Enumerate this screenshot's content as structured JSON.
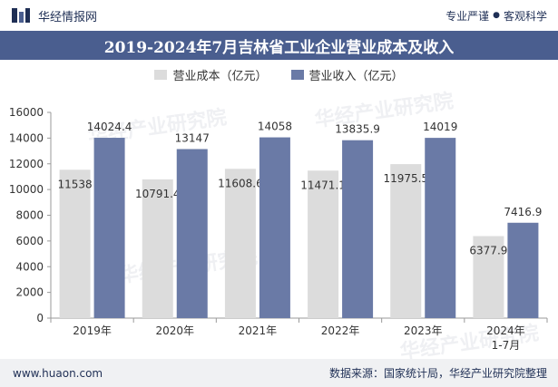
{
  "header": {
    "brand": "华经情报网",
    "slogan_left": "专业严谨",
    "slogan_right": "客观科学"
  },
  "watermark": "华经产业研究院",
  "colors": {
    "cost": "#dcdcdc",
    "revenue": "#6a7aa6",
    "title_bg": "#4a5e8f"
  },
  "chart_data": {
    "type": "bar",
    "title": "2019-2024年7月吉林省工业企业营业成本及收入",
    "categories": [
      "2019年",
      "2020年",
      "2021年",
      "2022年",
      "2023年",
      "2024年\n1-7月"
    ],
    "series": [
      {
        "name": "营业成本（亿元）",
        "values": [
          11538,
          10791.4,
          11608.6,
          11471.1,
          11975.5,
          6377.9
        ],
        "labels": [
          "11538",
          "10791.4",
          "11608.6",
          "11471.1",
          "11975.5",
          "6377.9"
        ]
      },
      {
        "name": "营业收入（亿元）",
        "values": [
          14024.4,
          13147,
          14058,
          13835.9,
          14019,
          7416.9
        ],
        "labels": [
          "14024.4",
          "13147",
          "14058",
          "13835.9",
          "14019",
          "7416.9"
        ]
      }
    ],
    "ylim": [
      0,
      16000
    ],
    "yticks": [
      "0",
      "2000",
      "4000",
      "6000",
      "8000",
      "10000",
      "12000",
      "14000",
      "16000"
    ],
    "legend_position": "top-center",
    "grid": false
  },
  "footer": {
    "url": "www.huaon.com",
    "source": "数据来源：国家统计局，华经产业研究院整理"
  }
}
